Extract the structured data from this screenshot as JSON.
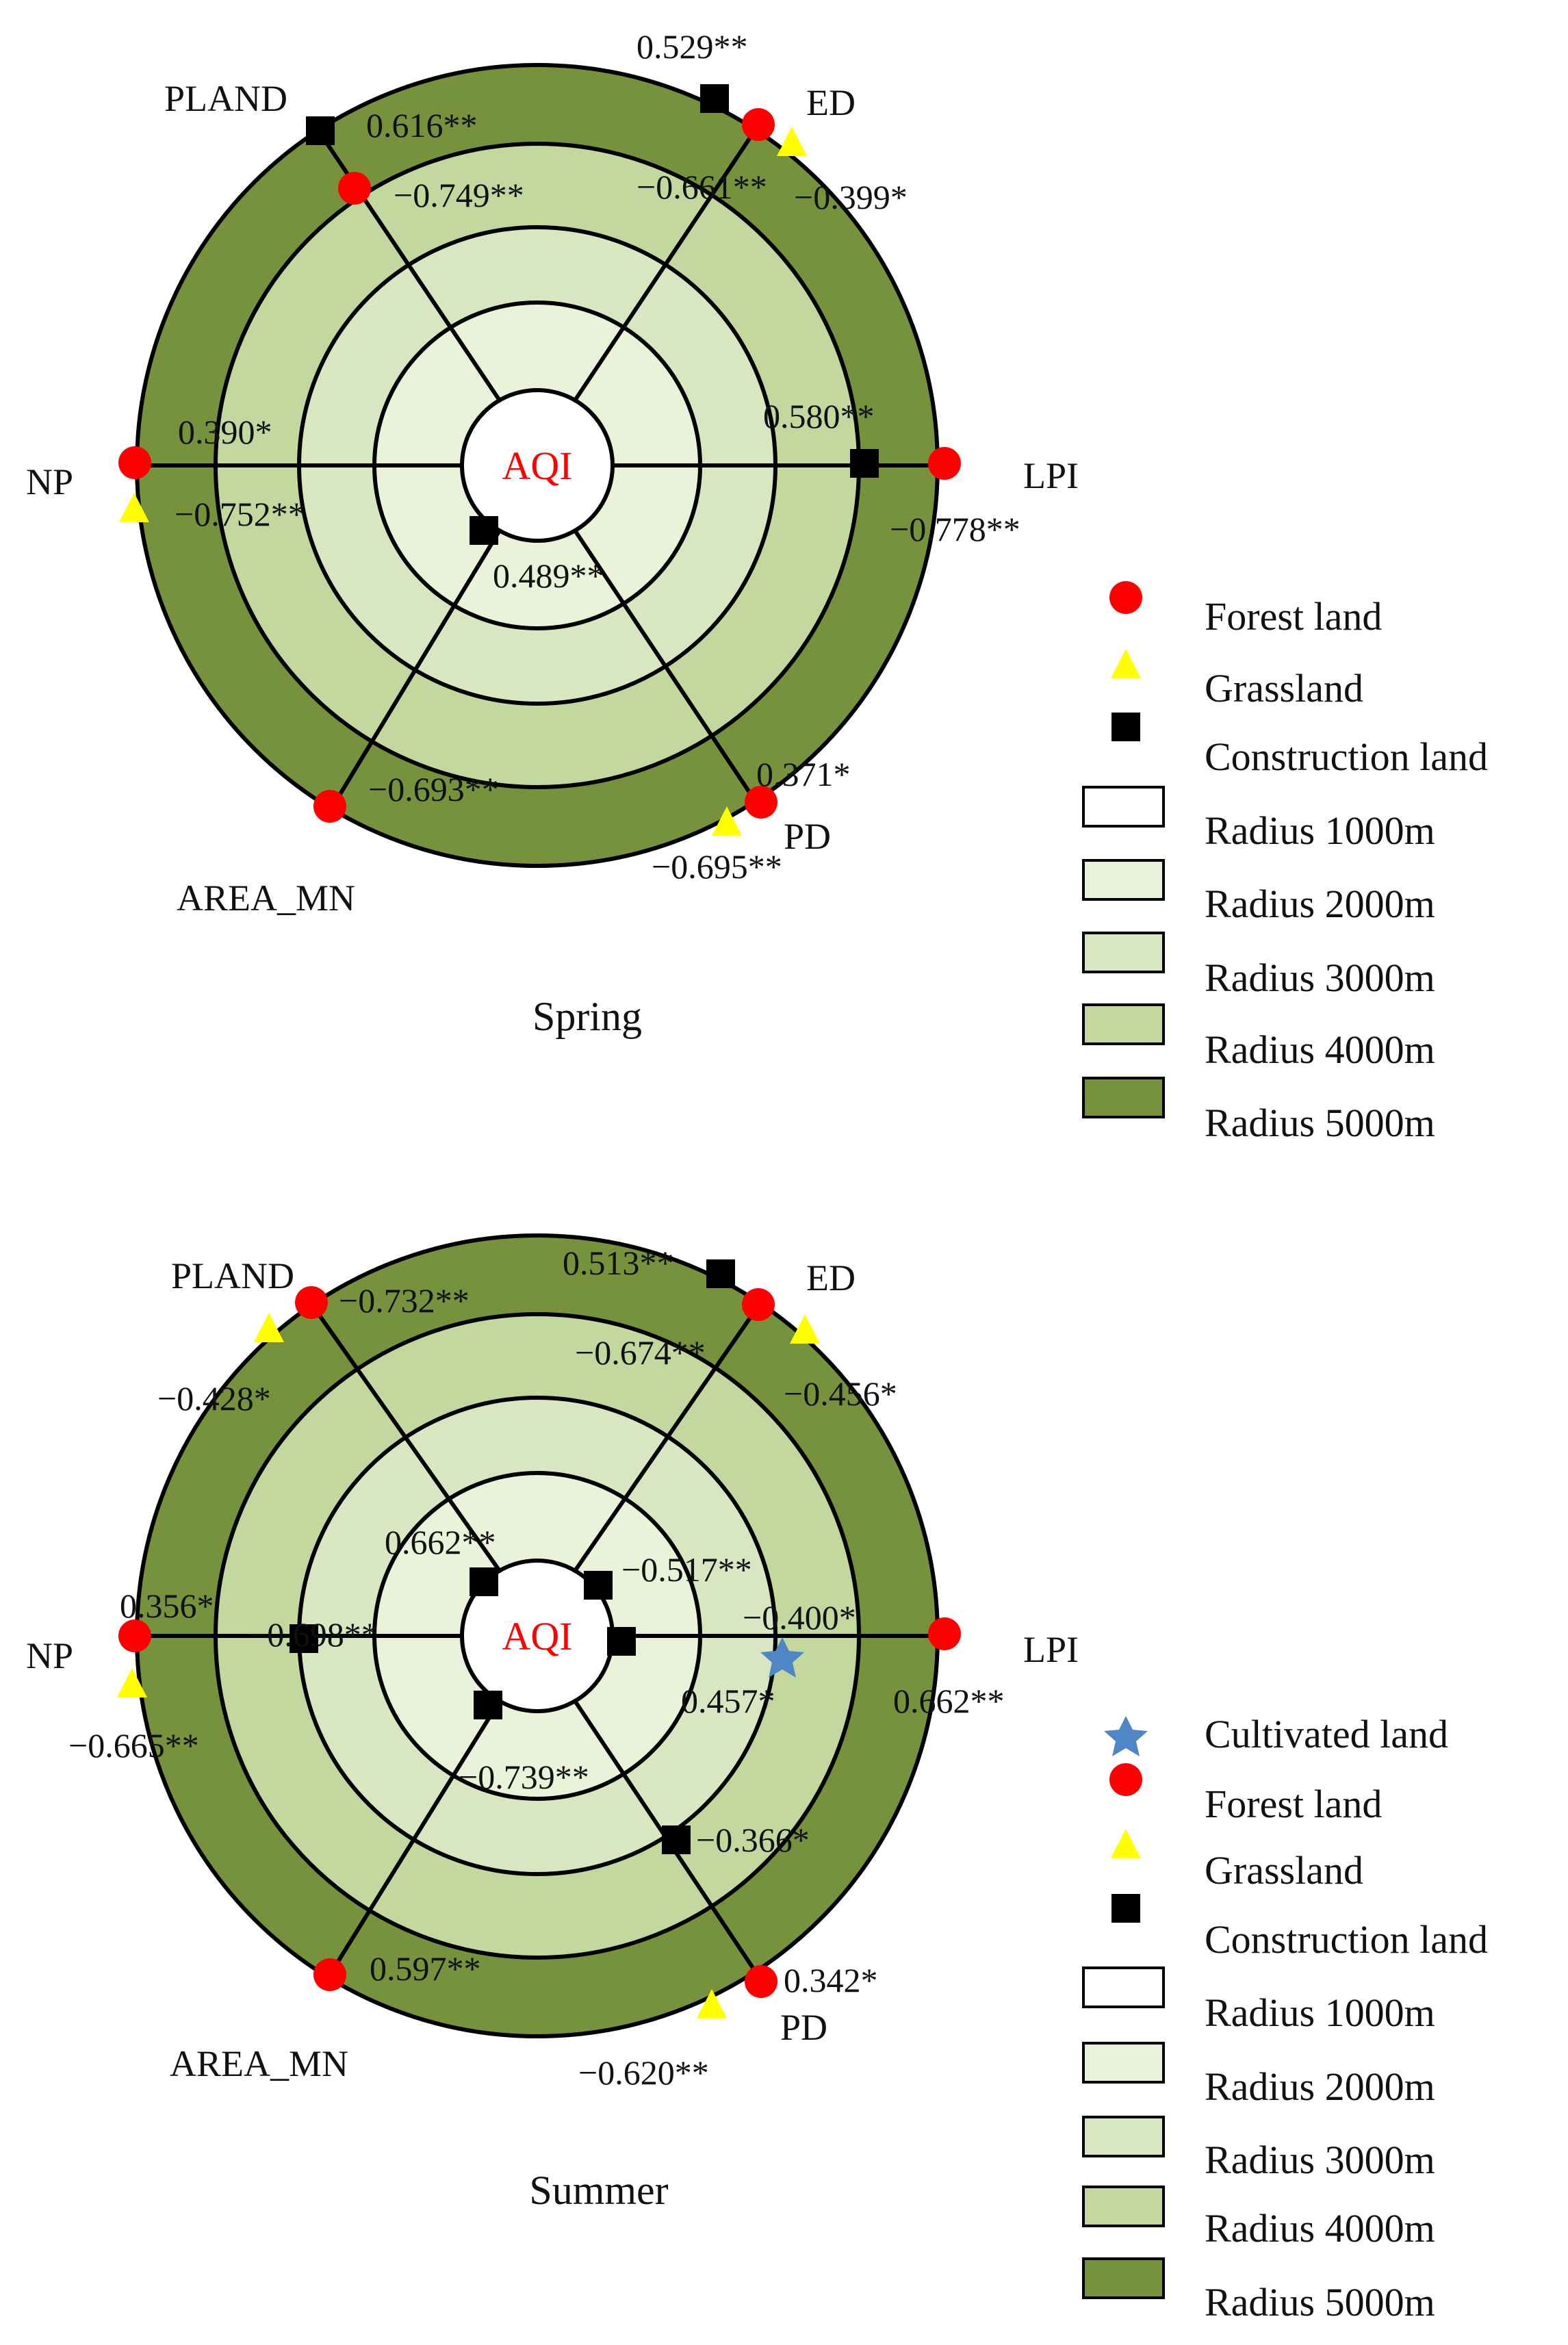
{
  "colors": {
    "ring1": "#ffffff",
    "ring2": "#eaf2da",
    "ring3": "#d9e6c2",
    "ring4": "#c3d89f",
    "ring5": "#76923c",
    "forest": "#ff0000",
    "grass": "#ffff00",
    "construction": "#000000",
    "cultivated": "#4f86c6",
    "center_text": "#ff0000"
  },
  "categories": {
    "pland": "PLAND",
    "ed": "ED",
    "np": "NP",
    "lpi": "LPI",
    "area_mn": "AREA_MN",
    "pd": "PD"
  },
  "center_label": "AQI",
  "chart_data": [
    {
      "type": "radial-diagram",
      "title": "Spring",
      "spokes": [
        "PLAND",
        "ED",
        "NP",
        "LPI",
        "AREA_MN",
        "PD"
      ],
      "rings": [
        "Radius 1000m",
        "Radius 2000m",
        "Radius 3000m",
        "Radius 4000m",
        "Radius 5000m"
      ],
      "correlations": [
        {
          "metric": "PLAND",
          "land": "Construction land",
          "radius": "Radius 5000m",
          "value": "0.616**"
        },
        {
          "metric": "PLAND",
          "land": "Forest land",
          "radius": "Radius 4000m",
          "value": "−0.749**"
        },
        {
          "metric": "ED",
          "land": "Construction land",
          "radius": "Radius 5000m",
          "value": "0.529**"
        },
        {
          "metric": "ED",
          "land": "Forest land",
          "radius": "Radius 5000m",
          "value": "−0.661**"
        },
        {
          "metric": "ED",
          "land": "Grassland",
          "radius": "Radius 5000m",
          "value": "−0.399*"
        },
        {
          "metric": "NP",
          "land": "Forest land",
          "radius": "Radius 5000m",
          "value": "0.390*"
        },
        {
          "metric": "NP",
          "land": "Grassland",
          "radius": "Radius 5000m",
          "value": "−0.752**"
        },
        {
          "metric": "LPI",
          "land": "Construction land",
          "radius": "Radius 4000m",
          "value": "0.580**"
        },
        {
          "metric": "LPI",
          "land": "Forest land",
          "radius": "Radius 5000m",
          "value": "−0.778**"
        },
        {
          "metric": "AREA_MN",
          "land": "Construction land",
          "radius": "Radius 1000m",
          "value": "0.489**"
        },
        {
          "metric": "AREA_MN",
          "land": "Forest land",
          "radius": "Radius 5000m",
          "value": "−0.693**"
        },
        {
          "metric": "PD",
          "land": "Forest land",
          "radius": "Radius 5000m",
          "value": "0.371*"
        },
        {
          "metric": "PD",
          "land": "Grassland",
          "radius": "Radius 5000m",
          "value": "−0.695**"
        }
      ],
      "legend": [
        "Forest land",
        "Grassland",
        "Construction land",
        "Radius 1000m",
        "Radius 2000m",
        "Radius 3000m",
        "Radius 4000m",
        "Radius 5000m"
      ]
    },
    {
      "type": "radial-diagram",
      "title": "Summer",
      "spokes": [
        "PLAND",
        "ED",
        "NP",
        "LPI",
        "AREA_MN",
        "PD"
      ],
      "rings": [
        "Radius 1000m",
        "Radius 2000m",
        "Radius 3000m",
        "Radius 4000m",
        "Radius 5000m"
      ],
      "correlations": [
        {
          "metric": "PLAND",
          "land": "Forest land",
          "radius": "Radius 5000m",
          "value": "−0.732**"
        },
        {
          "metric": "PLAND",
          "land": "Grassland",
          "radius": "Radius 5000m",
          "value": "−0.428*"
        },
        {
          "metric": "PLAND",
          "land": "Construction land",
          "radius": "Radius 1000m",
          "value": "0.662**"
        },
        {
          "metric": "ED",
          "land": "Construction land",
          "radius": "Radius 5000m",
          "value": "0.513**"
        },
        {
          "metric": "ED",
          "land": "Forest land",
          "radius": "Radius 5000m",
          "value": "−0.674**"
        },
        {
          "metric": "ED",
          "land": "Grassland",
          "radius": "Radius 5000m",
          "value": "−0.456*"
        },
        {
          "metric": "ED",
          "land": "Construction land",
          "radius": "Radius 1000m",
          "value": "−0.517**"
        },
        {
          "metric": "NP",
          "land": "Forest land",
          "radius": "Radius 5000m",
          "value": "0.356*"
        },
        {
          "metric": "NP",
          "land": "Grassland",
          "radius": "Radius 5000m",
          "value": "−0.665**"
        },
        {
          "metric": "NP",
          "land": "Construction land",
          "radius": "Radius 3000m",
          "value": "−0.400*"
        },
        {
          "metric": "LPI",
          "land": "Cultivated land",
          "radius": "Radius 3000m",
          "value": "0.457*"
        },
        {
          "metric": "LPI",
          "land": "Construction land",
          "radius": "Radius 1000m",
          "value": "0.662**"
        },
        {
          "metric": "LPI",
          "land": "Forest land",
          "radius": "Radius 5000m",
          "value": "−0.739**"
        },
        {
          "metric": "AREA_MN",
          "land": "Construction land",
          "radius": "Radius 1000m",
          "value": "0.597**"
        },
        {
          "metric": "AREA_MN",
          "land": "Forest land",
          "radius": "Radius 5000m",
          "value": "−0.698**"
        },
        {
          "metric": "PD",
          "land": "Construction land",
          "radius": "Radius 3000m",
          "value": "−0.366*"
        },
        {
          "metric": "PD",
          "land": "Forest land",
          "radius": "Radius 5000m",
          "value": "0.342*"
        },
        {
          "metric": "PD",
          "land": "Grassland",
          "radius": "Radius 5000m",
          "value": "−0.620**"
        }
      ],
      "legend": [
        "Cultivated land",
        "Forest land",
        "Grassland",
        "Construction land",
        "Radius 1000m",
        "Radius 2000m",
        "Radius 3000m",
        "Radius 4000m",
        "Radius 5000m"
      ]
    }
  ]
}
